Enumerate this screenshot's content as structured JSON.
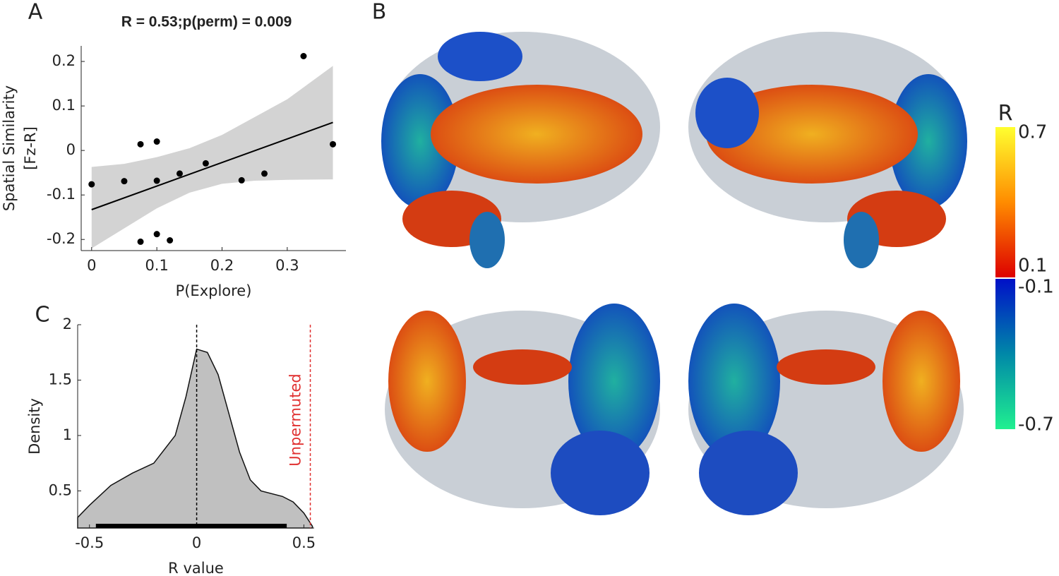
{
  "chart_data": [
    {
      "type": "scatter",
      "panel": "A",
      "title": "R = 0.53;p(perm) = 0.009",
      "xlabel": "P(Explore)",
      "ylabel": [
        "Spatial Similarity",
        "[Fz-R]"
      ],
      "x": [
        0,
        0.05,
        0.075,
        0.1,
        0.1,
        0.135,
        0.175,
        0.23,
        0.265,
        0.325,
        0.37,
        0.075,
        0.1,
        0.12
      ],
      "values": [
        -0.076,
        -0.069,
        0.014,
        0.02,
        -0.068,
        -0.052,
        -0.029,
        -0.067,
        -0.052,
        0.212,
        0.014,
        -0.205,
        -0.188,
        -0.202
      ],
      "color": "#000000",
      "fit": {
        "x": [
          0,
          0.37
        ],
        "y": [
          -0.133,
          0.063
        ],
        "color": "#000000"
      },
      "band": {
        "x": [
          0,
          0.05,
          0.1,
          0.15,
          0.2,
          0.25,
          0.3,
          0.37
        ],
        "upper": [
          -0.037,
          -0.03,
          -0.015,
          0.005,
          0.035,
          0.075,
          0.115,
          0.19
        ],
        "lower": [
          -0.22,
          -0.175,
          -0.13,
          -0.095,
          -0.075,
          -0.068,
          -0.066,
          -0.065
        ],
        "color": "#d3d3d3"
      },
      "xlim": [
        -0.016,
        0.39
      ],
      "ylim": [
        -0.225,
        0.235
      ],
      "xticks": [
        0,
        0.1,
        0.2,
        0.3
      ],
      "yticks": [
        -0.2,
        -0.1,
        0,
        0.1,
        0.2
      ]
    },
    {
      "type": "area",
      "panel": "C",
      "xlabel": "R value",
      "ylabel": "Density",
      "x": [
        -0.555,
        -0.5,
        -0.4,
        -0.3,
        -0.2,
        -0.1,
        -0.05,
        0,
        0.05,
        0.1,
        0.15,
        0.2,
        0.25,
        0.3,
        0.4,
        0.45,
        0.5,
        0.54
      ],
      "values": [
        0.26,
        0.37,
        0.55,
        0.66,
        0.75,
        1.0,
        1.35,
        1.78,
        1.75,
        1.55,
        1.2,
        0.85,
        0.6,
        0.5,
        0.45,
        0.4,
        0.3,
        0.18
      ],
      "color": "#c0c0c0",
      "rug": [
        -0.47,
        0.42
      ],
      "reference_lines": [
        {
          "value": 0,
          "color": "#000000"
        },
        {
          "value": 0.53,
          "color": "#e03030",
          "label": "Unpermuted"
        }
      ],
      "xlim": [
        -0.555,
        0.548
      ],
      "ylim": [
        0.165,
        2
      ],
      "xticks": [
        -0.5,
        0,
        0.5
      ],
      "yticks": [
        0.5,
        1,
        1.5,
        2
      ]
    },
    {
      "type": "colorbar",
      "panel": "B",
      "title": "R",
      "segments": [
        {
          "range": [
            0.1,
            0.7
          ],
          "colors": [
            "#dd0000",
            "#ff8c00",
            "#ffff30"
          ]
        },
        {
          "range": [
            -0.7,
            -0.1
          ],
          "colors": [
            "#20f090",
            "#0088a8",
            "#0010c8"
          ]
        }
      ]
    }
  ]
}
